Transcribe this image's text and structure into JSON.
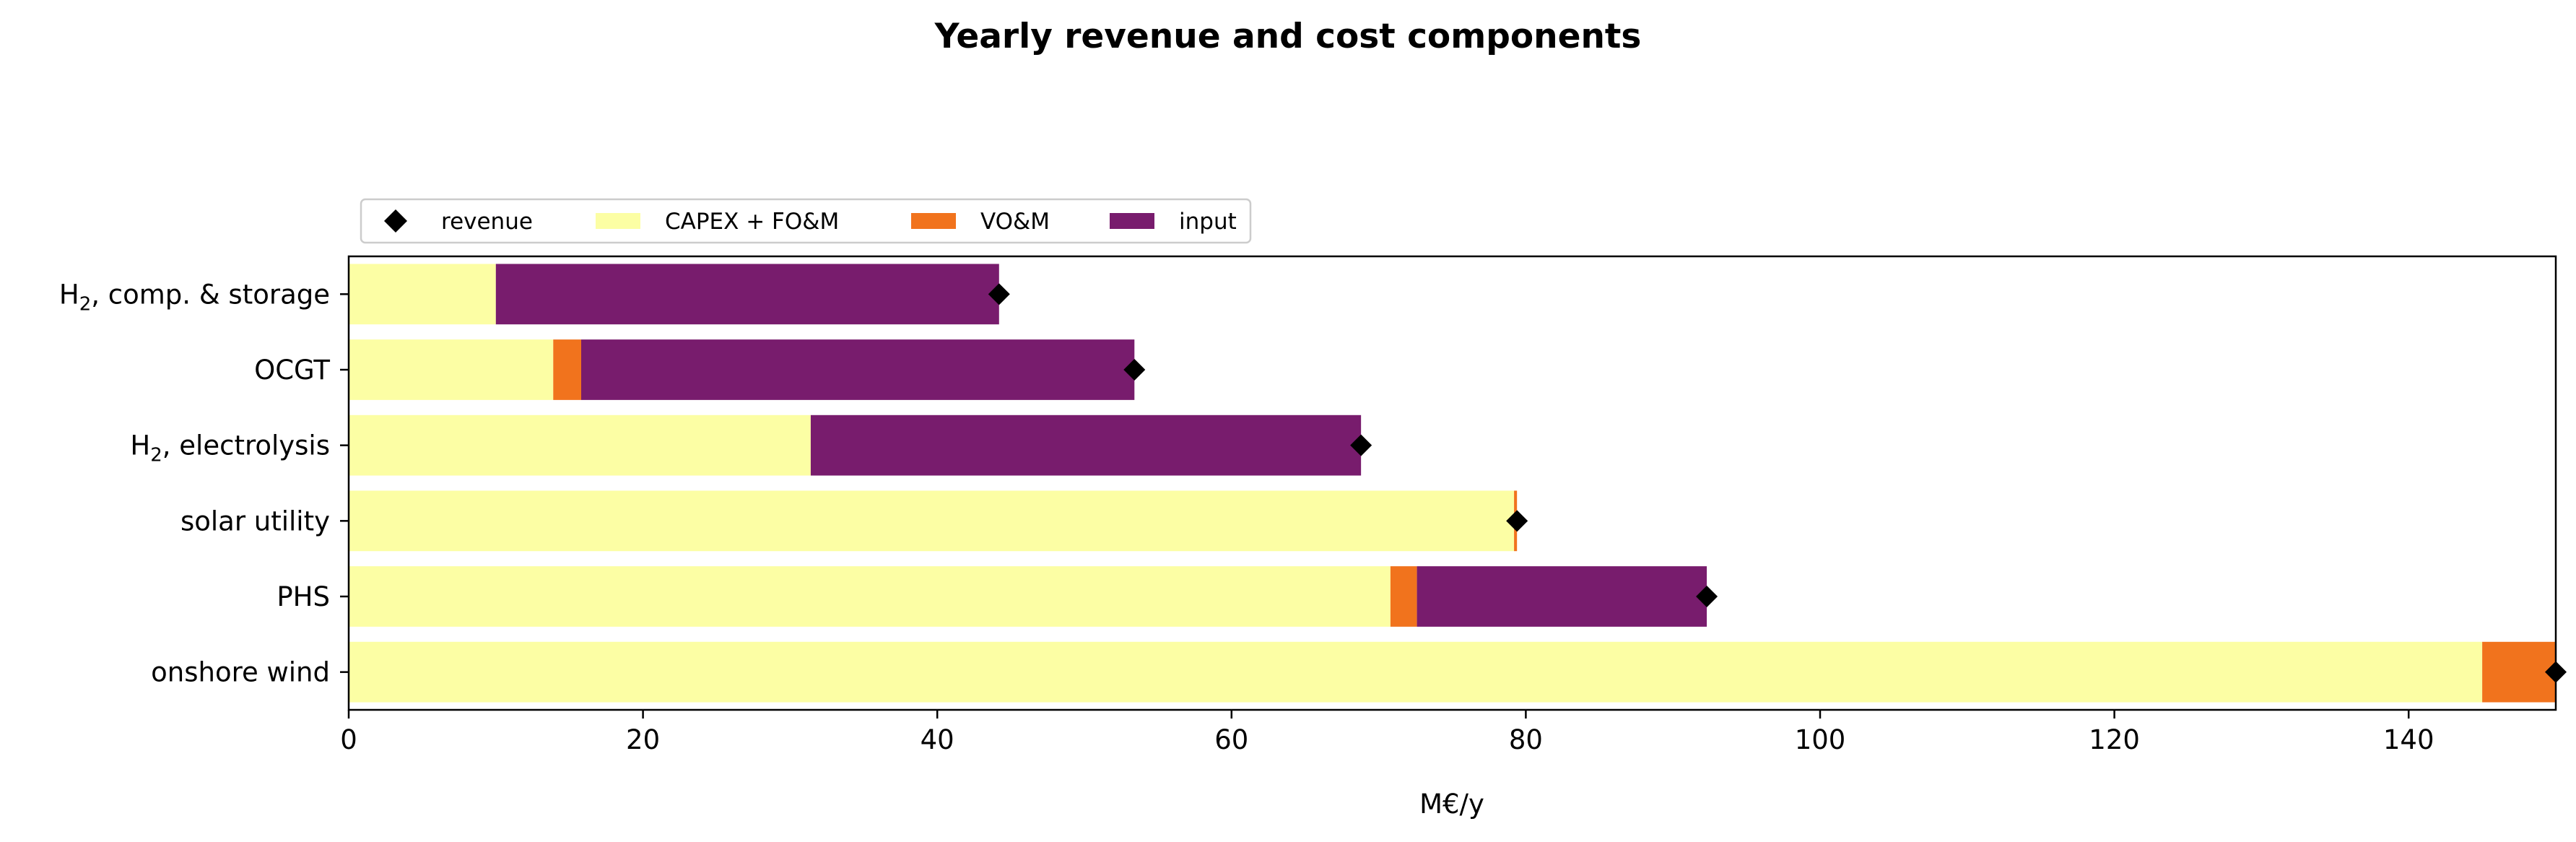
{
  "chart_data": {
    "type": "bar",
    "orientation": "horizontal",
    "stacked": true,
    "title": "Yearly revenue and cost components",
    "xlabel": "M€/y",
    "ylabel": "",
    "xlim": [
      0,
      150
    ],
    "xticks": [
      0,
      20,
      40,
      60,
      80,
      100,
      120,
      140
    ],
    "grid": false,
    "legend_placement": "top-left, above plot",
    "categories": [
      {
        "main": "H",
        "sub": "2",
        "rest": ", comp. & storage"
      },
      {
        "main": "OCGT",
        "sub": "",
        "rest": ""
      },
      {
        "main": "H",
        "sub": "2",
        "rest": ", electrolysis"
      },
      {
        "main": "solar utility",
        "sub": "",
        "rest": ""
      },
      {
        "main": "PHS",
        "sub": "",
        "rest": ""
      },
      {
        "main": "onshore wind",
        "sub": "",
        "rest": ""
      }
    ],
    "series": [
      {
        "name": "CAPEX + FO&M",
        "color": "#fcfea4",
        "values": [
          10.0,
          13.9,
          31.4,
          79.2,
          70.8,
          145.0
        ]
      },
      {
        "name": "VO&M",
        "color": "#f1731d",
        "values": [
          0.0,
          1.9,
          0.0,
          0.2,
          1.8,
          5.0
        ]
      },
      {
        "name": "input",
        "color": "#781c6d",
        "values": [
          34.2,
          37.6,
          37.4,
          0.0,
          19.7,
          0.0
        ]
      }
    ],
    "revenue": {
      "name": "revenue",
      "color": "#000000",
      "marker": "diamond",
      "values": [
        44.2,
        53.4,
        68.8,
        79.4,
        92.3,
        150.0
      ]
    }
  }
}
